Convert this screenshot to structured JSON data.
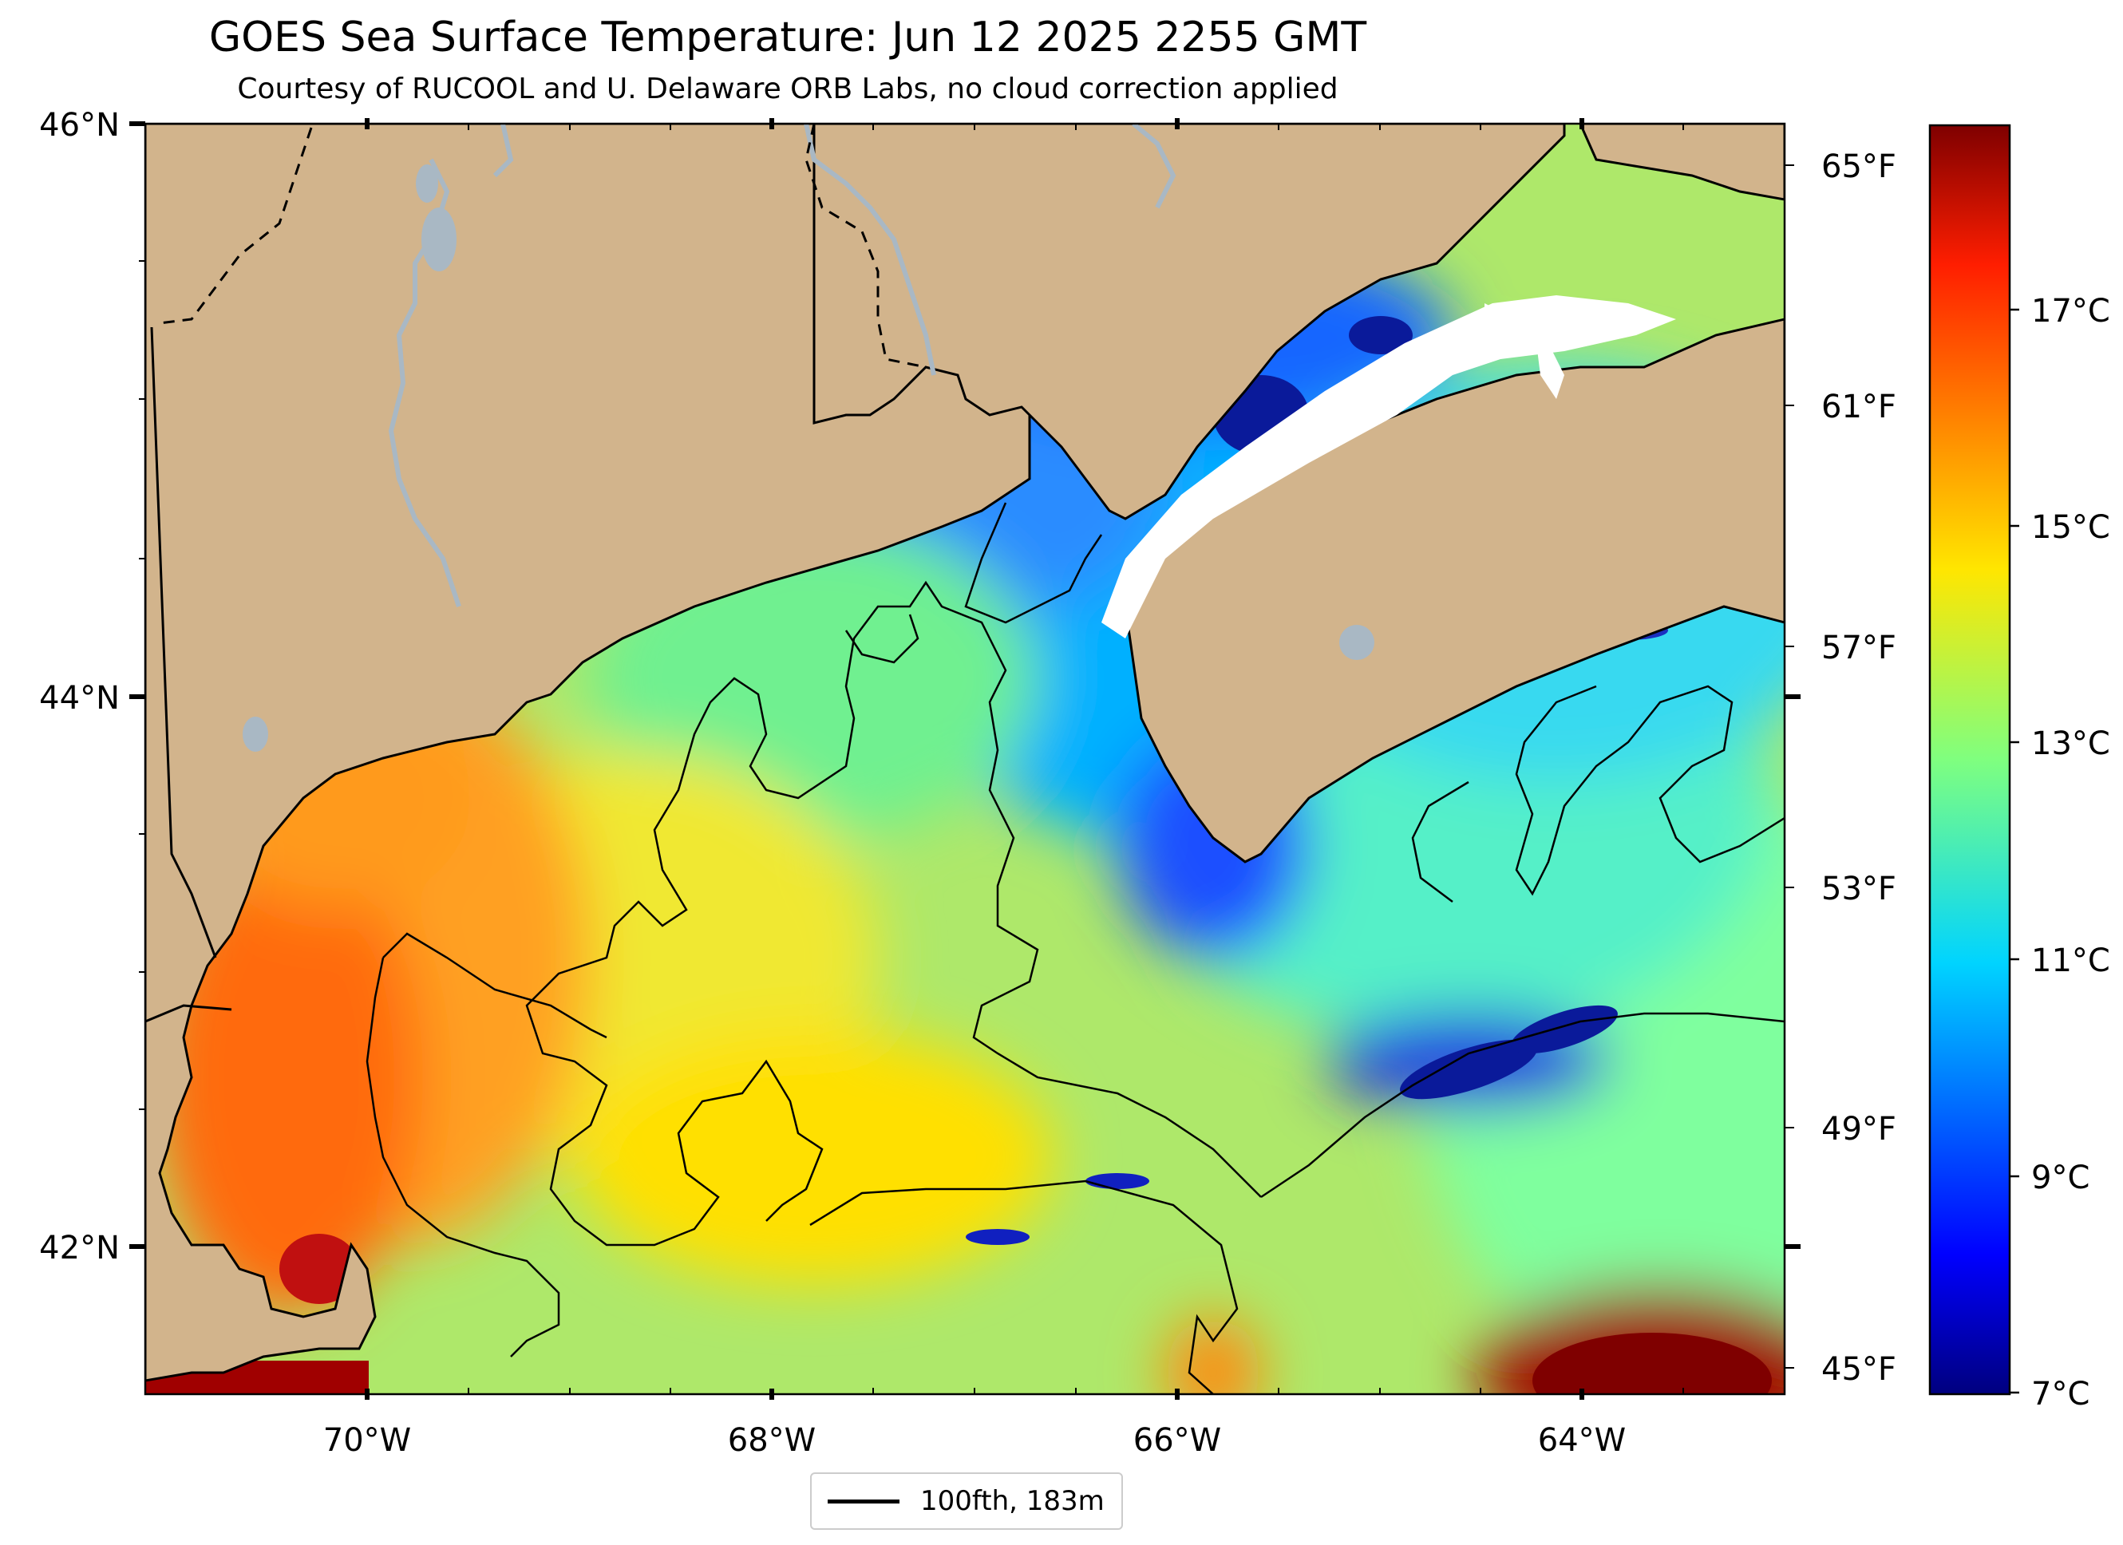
{
  "title": "GOES Sea Surface Temperature: Jun 12 2025 2255 GMT",
  "subtitle": "Courtesy of RUCOOL and U. Delaware ORB Labs, no cloud correction applied",
  "map": {
    "lon_ticks": [
      "70°W",
      "68°W",
      "66°W",
      "64°W"
    ],
    "lat_ticks": [
      "46°N",
      "44°N",
      "42°N"
    ],
    "fahrenheit_ticks": [
      "65°F",
      "61°F",
      "57°F",
      "53°F",
      "49°F",
      "45°F"
    ],
    "colors": {
      "land": "#d2b48c",
      "coastline": "#000000",
      "rivers": "#a9b8c4",
      "no_data": "#ffffff"
    }
  },
  "colorbar": {
    "ticks": [
      "7°C",
      "9°C",
      "11°C",
      "13°C",
      "15°C",
      "17°C"
    ],
    "range_c": [
      7,
      18.5
    ],
    "colormap": "jet"
  },
  "legend": {
    "label": "100fth, 183m"
  }
}
